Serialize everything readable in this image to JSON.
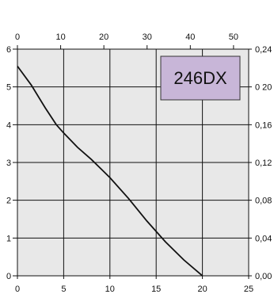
{
  "chart_data": {
    "type": "line",
    "title": "",
    "xlabel": "",
    "ylabel": "",
    "grid": true,
    "legend_position": "top-right",
    "label_box": {
      "text": "246DX",
      "fill": "#c8b6d8"
    },
    "colors": {
      "plot_bg": "#e8e8e8",
      "grid": "#111111",
      "line": "#111111"
    },
    "x_bottom": {
      "range": [
        0,
        25
      ],
      "ticks": [
        0,
        5,
        10,
        15,
        20,
        25
      ]
    },
    "x_top": {
      "range": [
        0,
        53.5
      ],
      "ticks": [
        0,
        10,
        20,
        30,
        40,
        50
      ]
    },
    "y_left": {
      "range": [
        0,
        6
      ],
      "ticks": [
        0,
        1,
        2,
        3,
        4,
        5,
        6
      ]
    },
    "y_right": {
      "range": [
        0,
        0.24
      ],
      "ticks": [
        "0,00",
        "0,04",
        "0,08",
        "0,12",
        "0,16",
        "0 20",
        "0,24"
      ]
    },
    "series": [
      {
        "x": [
          0,
          1.5,
          3,
          4.2,
          5,
          6.5,
          8,
          10,
          12,
          14,
          16,
          18,
          20
        ],
        "y": [
          5.55,
          5.05,
          4.45,
          4.0,
          3.78,
          3.4,
          3.08,
          2.6,
          2.05,
          1.45,
          0.9,
          0.42,
          0.0
        ]
      }
    ]
  }
}
